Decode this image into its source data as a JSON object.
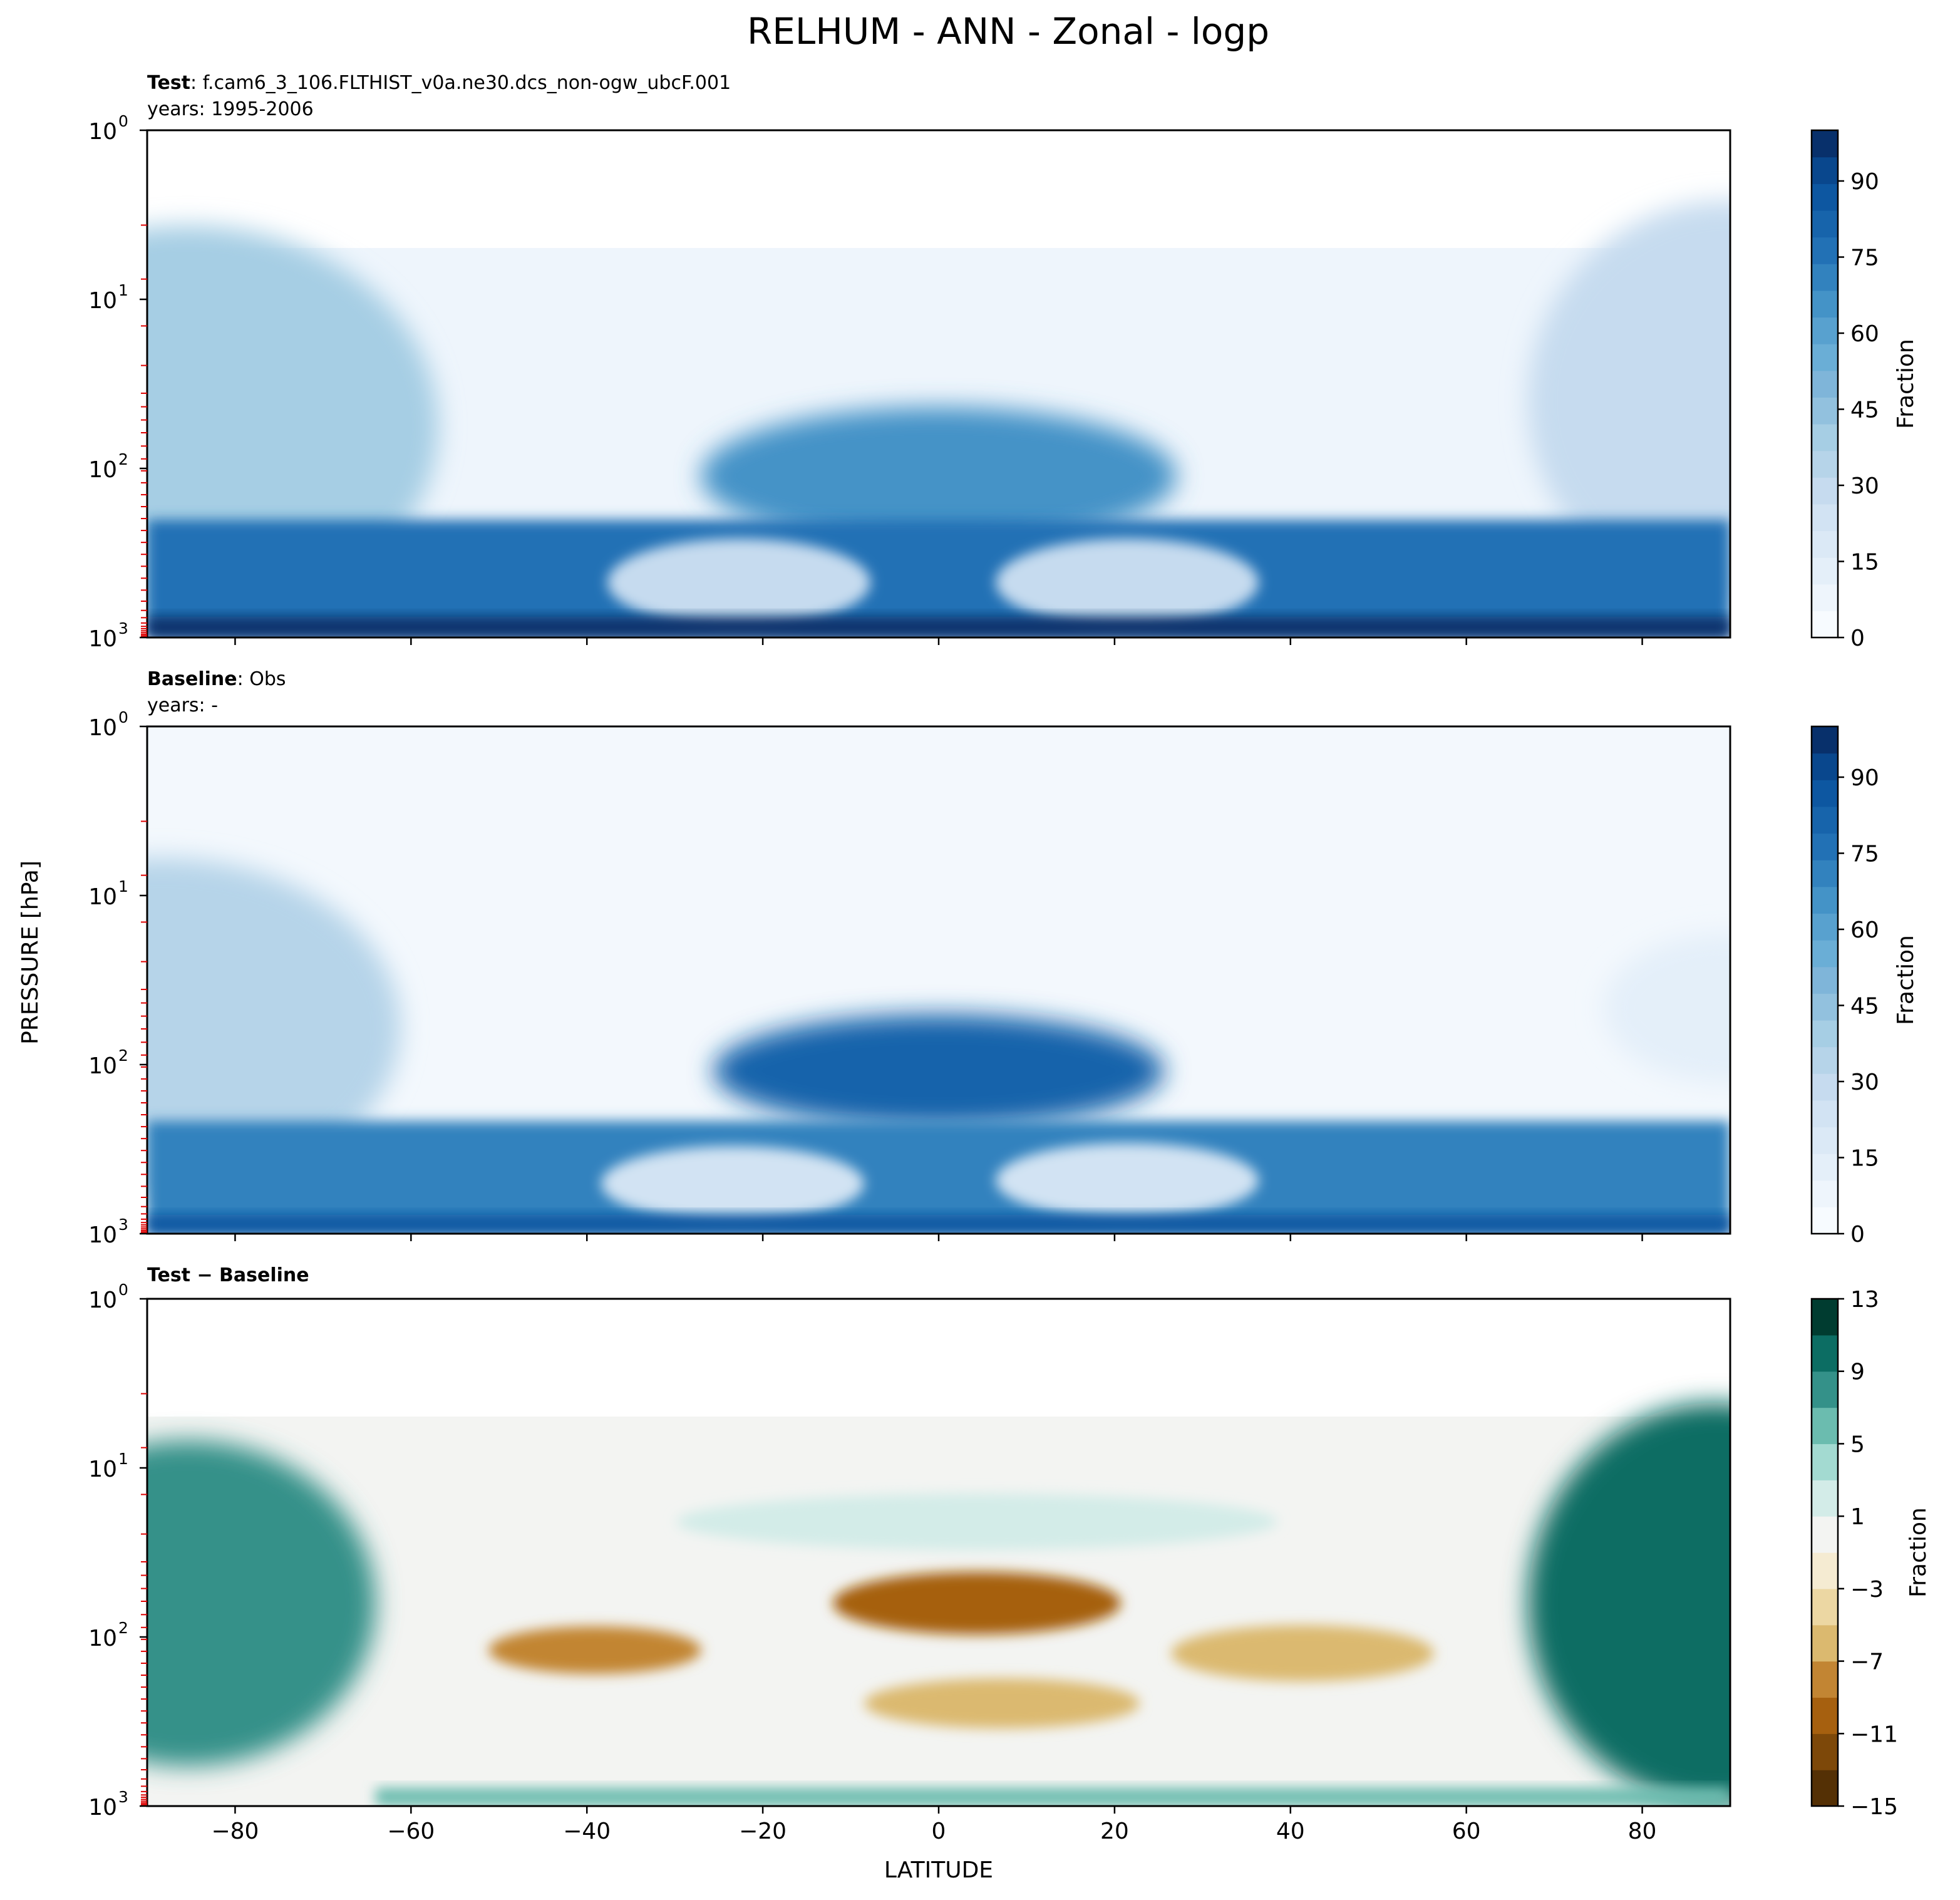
{
  "figure": {
    "title": "RELHUM - ANN - Zonal - logp",
    "shared_ylabel": "PRESSURE [hPa]",
    "shared_xlabel": "LATITUDE"
  },
  "colors": {
    "blues": [
      "#f7fbff",
      "#eef5fc",
      "#e4eff9",
      "#dbe9f6",
      "#d2e3f3",
      "#c6dbef",
      "#b6d4e9",
      "#a6cee4",
      "#92c1de",
      "#7fb5d9",
      "#6aaed6",
      "#58a1cf",
      "#4493c7",
      "#3282be",
      "#2271b5",
      "#1764ab",
      "#0d57a1",
      "#09478d",
      "#08306b"
    ],
    "diff": [
      "#543005",
      "#7d4809",
      "#a6600f",
      "#c28533",
      "#dbb96f",
      "#ecd7a3",
      "#f5ebd2",
      "#f3f4f2",
      "#d3ece8",
      "#a3dad1",
      "#6bbcaf",
      "#349189",
      "#0c6d63",
      "#003c30"
    ],
    "red_tick": "#dd0000"
  },
  "chart_data": [
    {
      "type": "contour",
      "panel_label_bold": "Test",
      "panel_label_text": ": f.cam6_3_106.FLTHIST_v0a.ne30.dcs_non-ogw_ubcF.001",
      "years": "years: 1995-2006",
      "x_range": [
        -90,
        90
      ],
      "y_range_hpa": [
        1000,
        1
      ],
      "y_scale": "log",
      "y_ticklabels": [
        "10",
        "10",
        "10",
        "10"
      ],
      "y_tick_exponents": [
        "0",
        "1",
        "2",
        "3"
      ],
      "x_ticks": [],
      "model_top_hpa": 5,
      "colorbar": {
        "label": "Fraction",
        "ticks": [
          "0",
          "15",
          "30",
          "45",
          "60",
          "75",
          "90"
        ],
        "range": [
          0,
          100
        ],
        "colormap": "blues"
      }
    },
    {
      "type": "contour",
      "panel_label_bold": "Baseline",
      "panel_label_text": ": Obs",
      "years": "years: -",
      "x_range": [
        -90,
        90
      ],
      "y_range_hpa": [
        1000,
        1
      ],
      "y_scale": "log",
      "y_ticklabels": [
        "10",
        "10",
        "10",
        "10"
      ],
      "y_tick_exponents": [
        "0",
        "1",
        "2",
        "3"
      ],
      "x_ticks": [],
      "model_top_hpa": 1,
      "colorbar": {
        "label": "Fraction",
        "ticks": [
          "0",
          "15",
          "30",
          "45",
          "60",
          "75",
          "90"
        ],
        "range": [
          0,
          100
        ],
        "colormap": "blues"
      }
    },
    {
      "type": "contour",
      "panel_label_bold": "Test − Baseline",
      "panel_label_text": "",
      "years": "",
      "x_range": [
        -90,
        90
      ],
      "y_range_hpa": [
        1000,
        1
      ],
      "y_scale": "log",
      "y_ticklabels": [
        "10",
        "10",
        "10",
        "10"
      ],
      "y_tick_exponents": [
        "0",
        "1",
        "2",
        "3"
      ],
      "x_ticks": [
        "−80",
        "−60",
        "−40",
        "−20",
        "0",
        "20",
        "40",
        "60",
        "80"
      ],
      "model_top_hpa": 5,
      "colorbar": {
        "label": "Fraction",
        "ticks": [
          "−15",
          "−11",
          "−7",
          "−3",
          "1",
          "5",
          "9",
          "13"
        ],
        "range": [
          -15,
          13
        ],
        "colormap": "diff"
      }
    }
  ]
}
